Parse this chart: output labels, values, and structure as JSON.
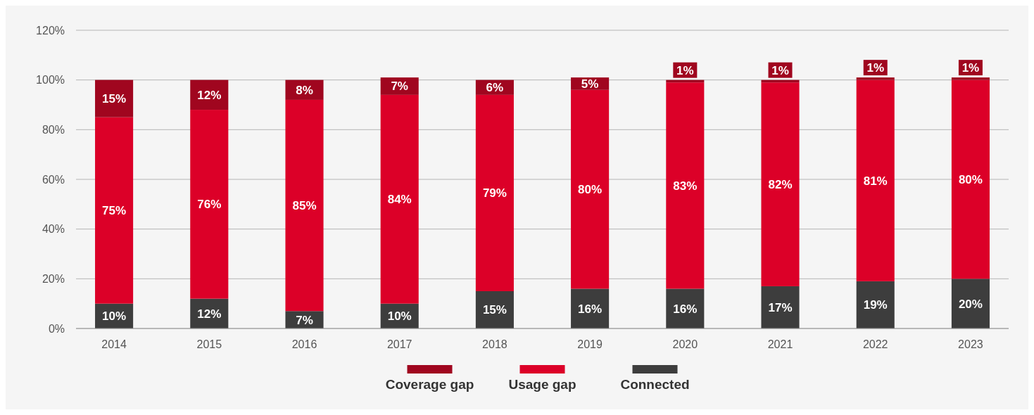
{
  "chart_data": {
    "type": "bar",
    "stacked": true,
    "categories": [
      "2014",
      "2015",
      "2016",
      "2017",
      "2018",
      "2019",
      "2020",
      "2021",
      "2022",
      "2023"
    ],
    "series": [
      {
        "name": "Connected",
        "color": "#3d3d3d",
        "values": [
          10,
          12,
          7,
          10,
          15,
          16,
          16,
          17,
          19,
          20
        ],
        "value_labels": [
          "10%",
          "12%",
          "7%",
          "10%",
          "15%",
          "16%",
          "16%",
          "17%",
          "19%",
          "20%"
        ]
      },
      {
        "name": "Usage gap",
        "color": "#dc0028",
        "values": [
          75,
          76,
          85,
          84,
          79,
          80,
          83,
          82,
          81,
          80
        ],
        "value_labels": [
          "75%",
          "76%",
          "85%",
          "84%",
          "79%",
          "80%",
          "83%",
          "82%",
          "81%",
          "80%"
        ]
      },
      {
        "name": "Coverage gap",
        "color": "#a0061f",
        "values": [
          15,
          12,
          8,
          7,
          6,
          5,
          1,
          1,
          1,
          1
        ],
        "value_labels": [
          "15%",
          "12%",
          "8%",
          "7%",
          "6%",
          "5%",
          "1%",
          "1%",
          "1%",
          "1%"
        ]
      }
    ],
    "ylim": [
      0,
      120
    ],
    "yticks": [
      {
        "value": 0,
        "label": "0%"
      },
      {
        "value": 20,
        "label": "20%"
      },
      {
        "value": 40,
        "label": "40%"
      },
      {
        "value": 60,
        "label": "60%"
      },
      {
        "value": 80,
        "label": "80%"
      },
      {
        "value": 100,
        "label": "100%"
      },
      {
        "value": 120,
        "label": "120%"
      }
    ],
    "grid": "y",
    "legend": "bottom"
  }
}
